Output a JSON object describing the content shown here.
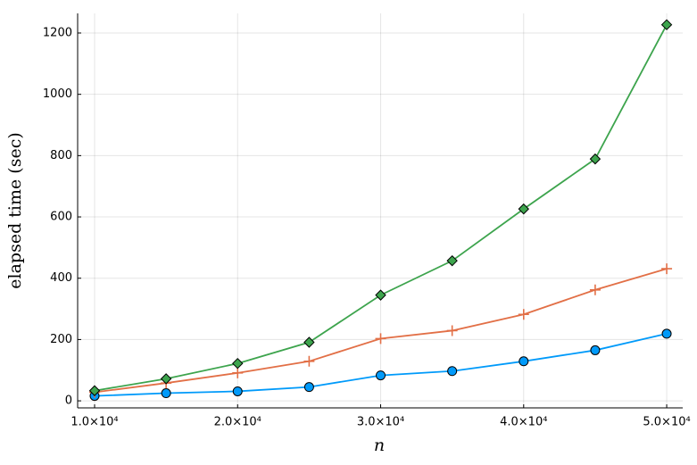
{
  "chart_data": {
    "type": "line",
    "xlabel": "n",
    "ylabel": "elapsed time (sec)",
    "x": [
      10000,
      15000,
      20000,
      25000,
      30000,
      35000,
      40000,
      45000,
      50000
    ],
    "series": [
      {
        "color": "#009afa",
        "marker": "circle",
        "values": [
          16,
          25,
          31,
          45,
          83,
          97,
          129,
          165,
          219
        ]
      },
      {
        "color": "#e26f46",
        "marker": "cross",
        "values": [
          28,
          58,
          91,
          129,
          203,
          229,
          282,
          362,
          431
        ]
      },
      {
        "color": "#3da44d",
        "marker": "diamond",
        "values": [
          33,
          72,
          122,
          191,
          345,
          457,
          626,
          789,
          1227
        ]
      }
    ],
    "xlim": [
      8815,
      51120
    ],
    "xticks": [
      {
        "value": 10000,
        "label": "1.0×10⁴"
      },
      {
        "value": 20000,
        "label": "2.0×10⁴"
      },
      {
        "value": 30000,
        "label": "3.0×10⁴"
      },
      {
        "value": 40000,
        "label": "4.0×10⁴"
      },
      {
        "value": 50000,
        "label": "5.0×10⁴"
      }
    ],
    "ylim": [
      -23,
      1264
    ],
    "yticks": [
      0,
      200,
      400,
      600,
      800,
      1000,
      1200
    ],
    "grid": true
  }
}
